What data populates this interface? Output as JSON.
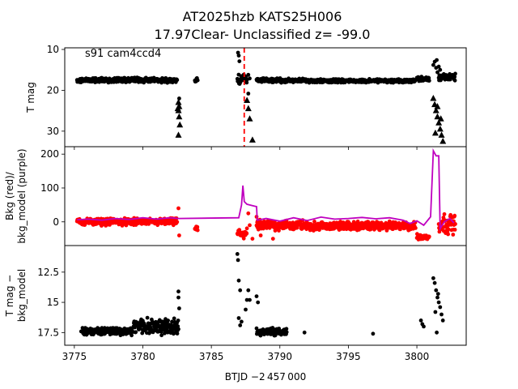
{
  "figure": {
    "title_line1": "AT2025hzb  KATS25H006",
    "title_line2": "17.97Clear- Unclassified z= -99.0",
    "annotation": "s91 cam4ccd4",
    "x_label": "BTJD −2 457 000"
  },
  "colors": {
    "black": "#000000",
    "red": "#ff0000",
    "purple": "#bf00bf"
  },
  "chart_data": [
    {
      "type": "scatter",
      "panel": "top",
      "ylabel": "T mag",
      "xlim": [
        3774.3,
        3803.6
      ],
      "ylim": [
        33.8,
        9.6
      ],
      "y_inverted": true,
      "yticks": [
        10,
        20,
        30
      ],
      "xticks": [
        3775,
        3780,
        3785,
        3790,
        3795,
        3800
      ],
      "vline": {
        "x": 3787.4,
        "style": "dashed",
        "color": "#ff0000"
      },
      "series": [
        {
          "marker": "dot",
          "segments": [
            {
              "x0": 3775.2,
              "x1": 3782.5,
              "y": 17.5,
              "spread": 0.7
            },
            {
              "x0": 3783.8,
              "x1": 3784.0,
              "y": 17.5,
              "spread": 0.6
            },
            {
              "x0": 3786.9,
              "x1": 3787.6,
              "y": 17.3,
              "spread": 1.5
            },
            {
              "x0": 3788.3,
              "x1": 3791.8,
              "y": 17.6,
              "spread": 0.6
            },
            {
              "x0": 3791.9,
              "x1": 3799.9,
              "y": 17.7,
              "spread": 0.5
            },
            {
              "x0": 3800.0,
              "x1": 3800.9,
              "y": 17.2,
              "spread": 0.6
            },
            {
              "x0": 3801.6,
              "x1": 3802.8,
              "y": 16.8,
              "spread": 1.0
            }
          ],
          "points": [
            [
              3786.95,
              10.8
            ],
            [
              3787.0,
              11.5
            ],
            [
              3787.05,
              12.9
            ],
            [
              3787.7,
              16.2
            ],
            [
              3787.8,
              17.1
            ],
            [
              3801.2,
              13.8
            ],
            [
              3801.3,
              13.0
            ],
            [
              3801.4,
              14.5
            ],
            [
              3801.5,
              15.6
            ],
            [
              3801.45,
              12.6
            ],
            [
              3801.6,
              14.2
            ],
            [
              3801.7,
              15.0
            ],
            [
              3782.65,
              22.0
            ],
            [
              3787.7,
              20.8
            ]
          ]
        },
        {
          "marker": "triangle",
          "points": [
            [
              3782.6,
              23.0
            ],
            [
              3782.65,
              24.0
            ],
            [
              3782.6,
              25.0
            ],
            [
              3782.65,
              26.5
            ],
            [
              3782.7,
              28.5
            ],
            [
              3782.6,
              31.0
            ],
            [
              3787.6,
              22.5
            ],
            [
              3787.7,
              24.5
            ],
            [
              3787.8,
              27.0
            ],
            [
              3788.0,
              32.2
            ],
            [
              3801.2,
              22.0
            ],
            [
              3801.3,
              23.5
            ],
            [
              3801.4,
              25.0
            ],
            [
              3801.5,
              26.5
            ],
            [
              3801.6,
              28.0
            ],
            [
              3801.7,
              29.5
            ],
            [
              3801.8,
              31.0
            ],
            [
              3801.9,
              32.5
            ],
            [
              3801.5,
              24.0
            ],
            [
              3801.75,
              27.0
            ],
            [
              3782.55,
              24.5
            ],
            [
              3801.35,
              30.5
            ]
          ]
        }
      ]
    },
    {
      "type": "line",
      "panel": "middle",
      "ylabel": "Bkg (red)/\nbkg_model (purple)",
      "xlim": [
        3774.3,
        3803.6
      ],
      "ylim": [
        -70,
        222
      ],
      "yticks": [
        0,
        100,
        200
      ],
      "series": [
        {
          "color": "#ff0000",
          "marker": "dot",
          "segments": [
            {
              "x0": 3775.2,
              "x1": 3782.5,
              "y": 0,
              "spread": 12
            },
            {
              "x0": 3783.8,
              "x1": 3784.0,
              "y": -20,
              "spread": 10
            },
            {
              "x0": 3786.9,
              "x1": 3787.6,
              "y": -35,
              "spread": 20
            },
            {
              "x0": 3788.3,
              "x1": 3791.8,
              "y": -10,
              "spread": 18
            },
            {
              "x0": 3791.9,
              "x1": 3799.9,
              "y": -12,
              "spread": 15
            },
            {
              "x0": 3800.0,
              "x1": 3800.9,
              "y": -45,
              "spread": 10
            },
            {
              "x0": 3801.6,
              "x1": 3802.8,
              "y": -5,
              "spread": 35
            }
          ],
          "points": [
            [
              3782.6,
              40
            ],
            [
              3782.65,
              -40
            ],
            [
              3787.7,
              25
            ],
            [
              3787.8,
              -10
            ],
            [
              3788.0,
              -50
            ],
            [
              3788.3,
              15
            ],
            [
              3788.6,
              -40
            ],
            [
              3789.5,
              -50
            ]
          ]
        },
        {
          "color": "#bf00bf",
          "marker": "line",
          "points": [
            [
              3775.2,
              6
            ],
            [
              3776,
              8
            ],
            [
              3777,
              5
            ],
            [
              3778,
              10
            ],
            [
              3779,
              7
            ],
            [
              3780,
              12
            ],
            [
              3781,
              8
            ],
            [
              3782,
              12
            ],
            [
              3782.6,
              10
            ],
            [
              3787.0,
              12
            ],
            [
              3787.2,
              50
            ],
            [
              3787.3,
              107
            ],
            [
              3787.4,
              60
            ],
            [
              3787.6,
              52
            ],
            [
              3788.0,
              48
            ],
            [
              3788.3,
              45
            ],
            [
              3788.35,
              5
            ],
            [
              3789,
              10
            ],
            [
              3790,
              2
            ],
            [
              3791,
              12
            ],
            [
              3792,
              4
            ],
            [
              3793,
              14
            ],
            [
              3794,
              8
            ],
            [
              3795,
              10
            ],
            [
              3796,
              13
            ],
            [
              3797,
              9
            ],
            [
              3798,
              12
            ],
            [
              3799,
              5
            ],
            [
              3799.5,
              -5
            ],
            [
              3800,
              3
            ],
            [
              3800.5,
              -10
            ],
            [
              3801.0,
              15
            ],
            [
              3801.2,
              210
            ],
            [
              3801.4,
              195
            ],
            [
              3801.6,
              195
            ],
            [
              3801.7,
              -20
            ],
            [
              3802.0,
              0
            ],
            [
              3802.4,
              10
            ],
            [
              3802.7,
              -3
            ]
          ]
        }
      ]
    },
    {
      "type": "scatter",
      "panel": "bottom",
      "ylabel": "T mag −\nbkg_model",
      "xlim": [
        3774.3,
        3803.6
      ],
      "ylim": [
        18.55,
        10.3
      ],
      "y_inverted": true,
      "yticks": [
        12.5,
        15.0,
        17.5
      ],
      "xticks": [
        3775,
        3780,
        3785,
        3790,
        3795,
        3800
      ],
      "xticklabels": [
        "3775",
        "3780",
        "3785",
        "3790",
        "3795",
        "3800"
      ],
      "series": [
        {
          "color": "#000000",
          "marker": "dot",
          "segments": [
            {
              "x0": 3775.6,
              "x1": 3779.2,
              "y": 17.4,
              "spread": 0.35
            },
            {
              "x0": 3779.3,
              "x1": 3782.6,
              "y": 17.05,
              "spread": 0.8
            },
            {
              "x0": 3788.3,
              "x1": 3790.5,
              "y": 17.45,
              "spread": 0.35
            }
          ],
          "points": [
            [
              3775.5,
              17.4
            ],
            [
              3782.6,
              14.1
            ],
            [
              3782.6,
              14.6
            ],
            [
              3782.65,
              15.5
            ],
            [
              3786.9,
              11.0
            ],
            [
              3786.95,
              11.5
            ],
            [
              3787.0,
              13.2
            ],
            [
              3787.1,
              14.0
            ],
            [
              3787.0,
              16.3
            ],
            [
              3787.2,
              16.6
            ],
            [
              3787.1,
              16.9
            ],
            [
              3787.6,
              14.8
            ],
            [
              3787.7,
              14.0
            ],
            [
              3787.8,
              14.8
            ],
            [
              3787.5,
              15.6
            ],
            [
              3788.3,
              14.5
            ],
            [
              3788.4,
              15.0
            ],
            [
              3791.8,
              17.5
            ],
            [
              3796.8,
              17.6
            ],
            [
              3800.3,
              16.5
            ],
            [
              3800.4,
              16.8
            ],
            [
              3800.5,
              17.0
            ],
            [
              3801.2,
              13.0
            ],
            [
              3801.3,
              13.4
            ],
            [
              3801.4,
              14.0
            ],
            [
              3801.5,
              14.6
            ],
            [
              3801.6,
              15.0
            ],
            [
              3801.7,
              15.4
            ],
            [
              3801.8,
              16.0
            ],
            [
              3801.9,
              16.5
            ],
            [
              3801.45,
              17.5
            ],
            [
              3801.55,
              14.3
            ],
            [
              3801.35,
              15.8
            ]
          ]
        }
      ]
    }
  ]
}
